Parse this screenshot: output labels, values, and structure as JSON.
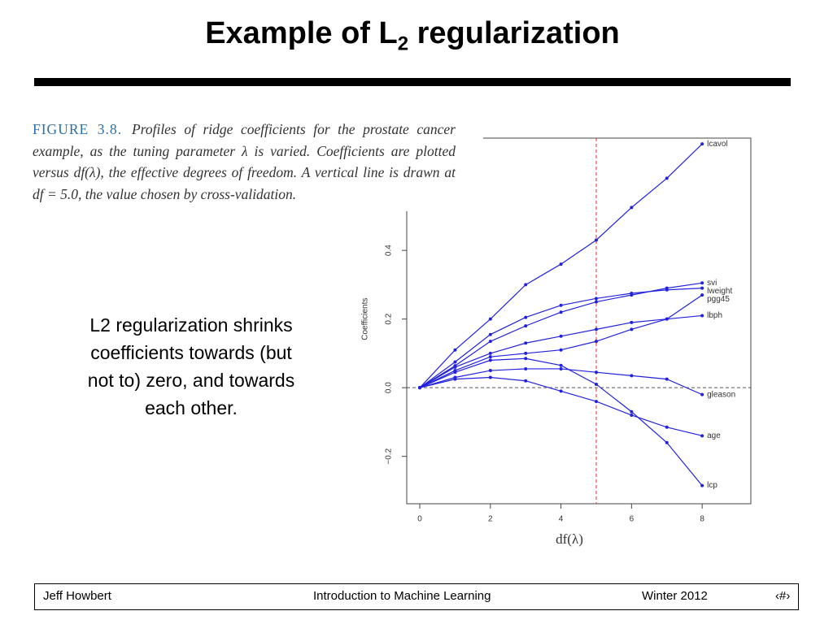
{
  "slide": {
    "title": [
      "Example of L",
      "2",
      " regularization"
    ],
    "figure_label": "FIGURE 3.8.",
    "caption": "Profiles of ridge coefficients for the prostate cancer example, as the tuning parameter λ is varied. Coefficients are plotted versus df(λ), the effective degrees of freedom. A vertical line is drawn at df = 5.0, the value chosen by cross-validation.",
    "body": "L2 regularization shrinks coefficients towards (but not to) zero, and towards each other.",
    "footer": [
      "Jeff Howbert",
      "Introduction to Machine Learning",
      "Winter 2012",
      "‹#›"
    ]
  },
  "chart_data": {
    "type": "line",
    "x_label": "df(λ)",
    "y_label": "Coefficients",
    "x": [
      0,
      1,
      2,
      3,
      4,
      5,
      6,
      7,
      8
    ],
    "series": [
      {
        "name": "lcavol",
        "color": "#2222dd",
        "values": [
          0,
          0.11,
          0.2,
          0.3,
          0.36,
          0.43,
          0.525,
          0.61,
          0.71
        ]
      },
      {
        "name": "svi",
        "color": "#2222dd",
        "values": [
          0,
          0.064,
          0.135,
          0.18,
          0.22,
          0.25,
          0.27,
          0.29,
          0.305
        ]
      },
      {
        "name": "lweight",
        "color": "#2222dd",
        "values": [
          0,
          0.075,
          0.155,
          0.205,
          0.24,
          0.26,
          0.275,
          0.285,
          0.29
        ]
      },
      {
        "name": "pgg45",
        "color": "#2222dd",
        "values": [
          0,
          0.05,
          0.09,
          0.1,
          0.11,
          0.135,
          0.17,
          0.2,
          0.27
        ]
      },
      {
        "name": "lbph",
        "color": "#2222dd",
        "values": [
          0,
          0.06,
          0.1,
          0.13,
          0.15,
          0.17,
          0.19,
          0.2,
          0.21
        ]
      },
      {
        "name": "gleason",
        "color": "#2222dd",
        "values": [
          0,
          0.03,
          0.05,
          0.055,
          0.055,
          0.045,
          0.035,
          0.025,
          -0.02
        ]
      },
      {
        "name": "age",
        "color": "#2222dd",
        "values": [
          0,
          0.025,
          0.03,
          0.02,
          -0.01,
          -0.04,
          -0.08,
          -0.115,
          -0.14
        ]
      },
      {
        "name": "lcp",
        "color": "#2222dd",
        "values": [
          0,
          0.045,
          0.08,
          0.085,
          0.065,
          0.01,
          -0.07,
          -0.16,
          -0.285
        ]
      }
    ],
    "xlim": [
      -0.37,
      9.38
    ],
    "ylim": [
      -0.338,
      0.727
    ],
    "xticks": [
      0,
      2,
      4,
      6,
      8
    ],
    "yticks": [
      {
        "value": -0.2,
        "label": "−0.2"
      },
      {
        "value": 0,
        "label": "0.0"
      },
      0.2,
      0.4
    ],
    "vline": 5,
    "vline_color": "#e03030",
    "hline": 0
  }
}
